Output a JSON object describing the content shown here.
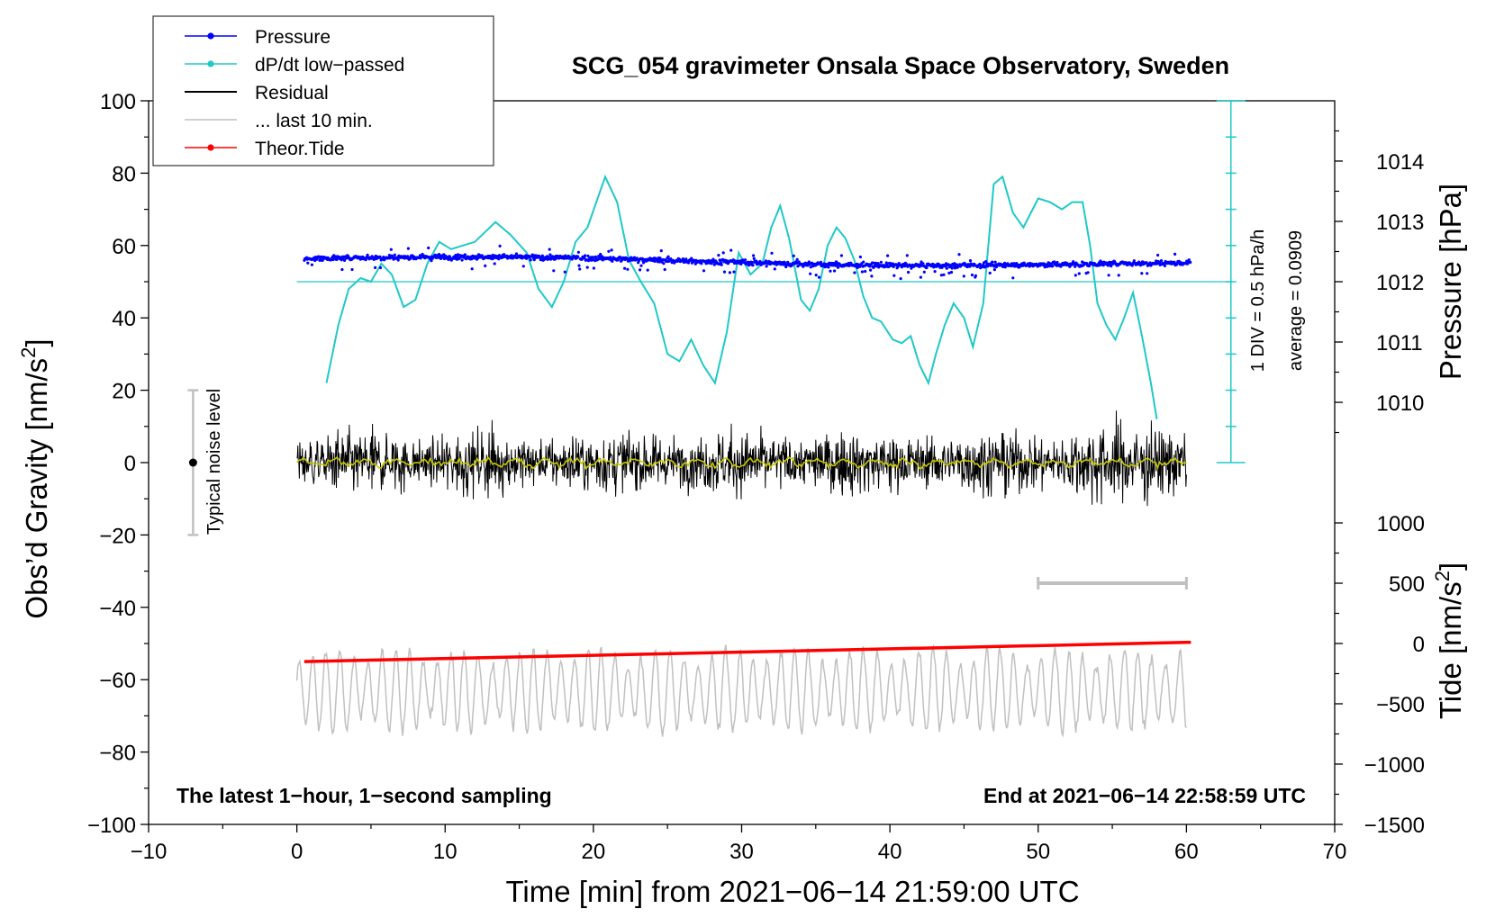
{
  "chart_data": {
    "type": "line",
    "title": "SCG_054 gravimeter Onsala Space Observatory, Sweden",
    "xlabel": "Time [min] from 2021−06−14 21:59:00 UTC",
    "ylabel": "Obs’d Gravity [nm/s",
    "ylabel_sup": "2",
    "ylabel_close": "]",
    "xlim": [
      -10,
      70
    ],
    "ylim": [
      -100,
      100
    ],
    "x_ticks": [
      "−10",
      "0",
      "10",
      "20",
      "30",
      "40",
      "50",
      "60",
      "70"
    ],
    "x_tick_values": [
      -10,
      0,
      10,
      20,
      30,
      40,
      50,
      60,
      70
    ],
    "y_ticks": [
      "100",
      "80",
      "60",
      "40",
      "20",
      "0",
      "−20",
      "−40",
      "−60",
      "−80",
      "−100"
    ],
    "y_tick_values": [
      100,
      80,
      60,
      40,
      20,
      0,
      -20,
      -40,
      -60,
      -80,
      -100
    ],
    "pressure_axis": {
      "label": "Pressure [hPa]",
      "ticks": [
        "1014",
        "1013",
        "1012",
        "1011",
        "1010"
      ],
      "tick_values": [
        1014,
        1013,
        1012,
        1011,
        1010
      ],
      "scale": {
        "hpa_at_gravity_50": 1012,
        "gravity_units_per_hpa": 16.67
      }
    },
    "tide_axis": {
      "label": "Tide [nm/s",
      "label_sup": "2",
      "label_close": "]",
      "ticks": [
        "1000",
        "500",
        "0",
        "−500",
        "−1000",
        "−1500"
      ],
      "tick_values": [
        1000,
        500,
        0,
        -500,
        -1000,
        -1500
      ],
      "scale": {
        "tide_zero_at_gravity": -50,
        "gravity_units_per_1000": 33.33
      }
    },
    "legend": {
      "position": "top-left",
      "entries": [
        {
          "label": "Pressure",
          "color": "#0000ff",
          "marker": true
        },
        {
          "label": "dP/dt low−passed",
          "color": "#20c8c8",
          "marker": true
        },
        {
          "label": "Residual",
          "color": "#000000",
          "marker": false
        },
        {
          "label": "... last 10 min.",
          "color": "#c0c0c0",
          "marker": false
        },
        {
          "label": "Theor.Tide",
          "color": "#ff0000",
          "marker": true
        }
      ]
    },
    "noise_bar": {
      "label": "Typical noise level",
      "x": -7,
      "center": 0,
      "low": -20,
      "high": 20
    },
    "dpdt_scale": {
      "baseline": 50,
      "average": "average = 0.0909",
      "division": "1 DIV = 0.5 hPa/h",
      "x": 63,
      "bottom": 0,
      "top": 100
    },
    "last_10_min_bracket": {
      "x_start": 50,
      "x_end": 60,
      "tide_value": 500
    },
    "corner_left": "The latest 1−hour, 1−second sampling",
    "corner_right": "End at 2021−06−14 22:58:59 UTC",
    "series": [
      {
        "name": "dP/dt low−passed",
        "color": "#20c8c8",
        "x": [
          2,
          2.8,
          3.5,
          4.3,
          5,
          5.7,
          6.4,
          7.2,
          8,
          8.8,
          9.6,
          10.4,
          11.2,
          12,
          13.4,
          14.4,
          15.5,
          16.3,
          17.2,
          18,
          18.8,
          19.6,
          20.2,
          20.8,
          21.6,
          22.4,
          23.2,
          24.1,
          25,
          25.8,
          26.6,
          27.4,
          28.2,
          29,
          29.8,
          30.6,
          31.4,
          32,
          32.6,
          33.2,
          34,
          34.6,
          35.2,
          35.8,
          36.4,
          37,
          37.6,
          38.2,
          38.8,
          39.4,
          40.2,
          40.8,
          41.4,
          42,
          42.6,
          43.1,
          43.7,
          44.3,
          45,
          45.6,
          46.3,
          47,
          47.6,
          48.3,
          49,
          50,
          50.8,
          51.6,
          52.3,
          53,
          53.5,
          54,
          54.6,
          55.2,
          55.8,
          56.4,
          57,
          57.6,
          58
        ],
        "y": [
          22,
          38,
          48,
          51,
          50,
          55,
          52,
          43,
          45,
          55,
          61,
          59,
          60,
          61,
          66.5,
          63,
          58,
          48,
          43,
          50,
          61,
          65,
          72,
          79,
          72,
          56,
          50,
          44,
          30,
          28,
          34,
          27,
          22,
          36,
          58,
          52,
          55,
          65,
          71,
          62,
          45,
          42,
          48,
          60,
          65,
          62,
          56,
          46,
          40,
          39,
          34,
          33,
          35,
          27,
          22,
          30,
          38,
          44,
          40,
          32,
          44,
          77,
          79,
          69,
          65,
          73,
          72,
          70,
          72,
          72,
          60,
          44,
          38,
          34,
          40,
          47,
          35,
          22,
          12
        ]
      },
      {
        "name": "Pressure",
        "color": "#0000ff",
        "x_range": [
          0.5,
          60.3
        ],
        "level": 55.5
      },
      {
        "name": "Residual",
        "color": "#000000",
        "x_range": [
          0,
          60
        ],
        "center": 0
      },
      {
        "name": "... last 10 min.",
        "color": "#c0c0c0",
        "x_range": [
          0,
          60
        ],
        "center": -63
      },
      {
        "name": "Theor.Tide",
        "color": "#ff0000",
        "x": [
          0.5,
          60.3
        ],
        "tide": [
          -150,
          10
        ]
      }
    ]
  }
}
